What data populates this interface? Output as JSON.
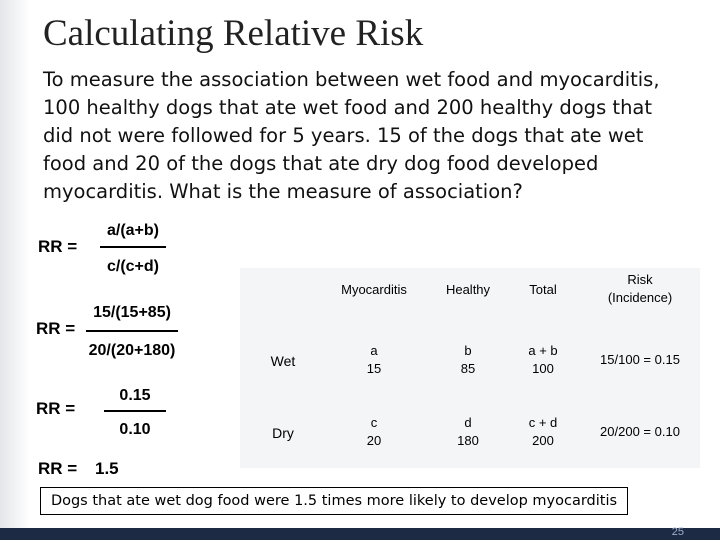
{
  "title": "Calculating Relative Risk",
  "body": "To measure the association between wet food and myocarditis, 100 healthy dogs that ate wet food and 200 healthy dogs that did not were followed for 5 years. 15 of the dogs that ate wet food and 20 of the dogs that ate dry dog food developed myocarditis. What is the measure of association?",
  "formulas": [
    {
      "label": "RR =",
      "numerator": "a/(a+b)",
      "denominator": "c/(c+d)"
    },
    {
      "label": "RR =",
      "numerator": "15/(15+85)",
      "denominator": "20/(20+180)"
    },
    {
      "label": "RR =",
      "numerator": "0.15",
      "denominator": "0.10"
    }
  ],
  "result": {
    "label": "RR =",
    "value": 1.5
  },
  "table": {
    "columns": [
      "Myocarditis",
      "Healthy",
      "Total",
      "Risk (Incidence)"
    ],
    "rows": [
      {
        "label": "Wet",
        "cells": [
          {
            "letter": "a",
            "value": 15
          },
          {
            "letter": "b",
            "value": 85
          },
          {
            "letter": "a + b",
            "value": 100
          }
        ],
        "risk": "15/100 = 0.15"
      },
      {
        "label": "Dry",
        "cells": [
          {
            "letter": "c",
            "value": 20
          },
          {
            "letter": "d",
            "value": 180
          },
          {
            "letter": "c + d",
            "value": 200
          }
        ],
        "risk": "20/200 = 0.10"
      }
    ]
  },
  "conclusion": "Dogs that ate wet dog food were 1.5 times more likely to develop myocarditis",
  "page_number": 25
}
